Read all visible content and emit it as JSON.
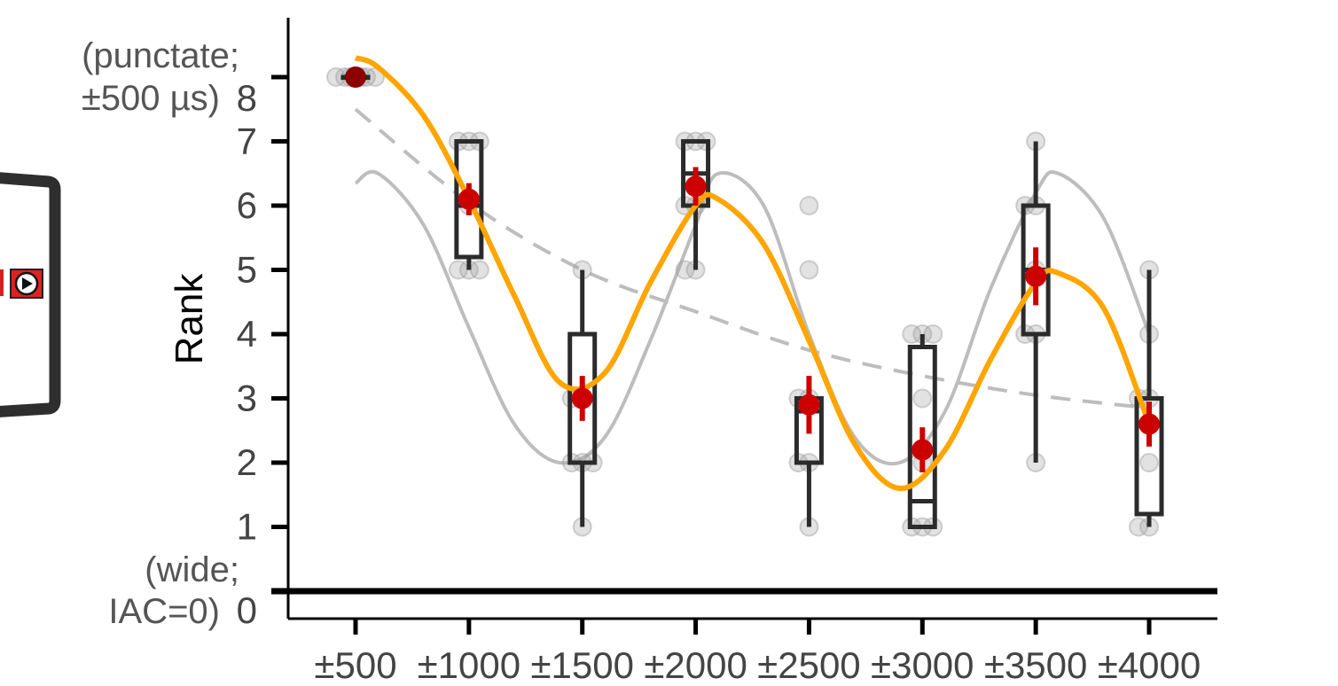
{
  "chart_data": {
    "type": "box",
    "ylabel": "Rank",
    "ylim": [
      0,
      8
    ],
    "y_ticks": [
      "1",
      "2",
      "3",
      "4",
      "5",
      "6",
      "7",
      "8",
      "0"
    ],
    "y_annotations": {
      "top": [
        "(punctate;",
        "±500 µs)"
      ],
      "bottom": [
        "(wide;",
        "IAC=0)"
      ]
    },
    "categories": [
      "±500",
      "±1000",
      "±1500",
      "±2000",
      "±2500",
      "±3000",
      "±3500",
      "±4000"
    ],
    "x_values": [
      500,
      1000,
      1500,
      2000,
      2500,
      3000,
      3500,
      4000
    ],
    "boxes": [
      {
        "min": 8,
        "q1": 8,
        "median": 8,
        "q3": 8,
        "max": 8
      },
      {
        "min": 5,
        "q1": 5.2,
        "median": 6,
        "q3": 7,
        "max": 7
      },
      {
        "min": 1,
        "q1": 2,
        "median": 3,
        "q3": 4,
        "max": 5
      },
      {
        "min": 5,
        "q1": 6,
        "median": 6.5,
        "q3": 7,
        "max": 7
      },
      {
        "min": 1,
        "q1": 2,
        "median": 2.8,
        "q3": 3,
        "max": 3
      },
      {
        "min": 1,
        "q1": 1,
        "median": 1.4,
        "q3": 3.8,
        "max": 4
      },
      {
        "min": 2,
        "q1": 4,
        "median": 5,
        "q3": 6,
        "max": 7
      },
      {
        "min": 1,
        "q1": 1.2,
        "median": 3,
        "q3": 3,
        "max": 5
      }
    ],
    "means": [
      8.0,
      6.1,
      3.0,
      6.3,
      2.9,
      2.2,
      4.9,
      2.6
    ],
    "mean_errors": [
      0.05,
      0.25,
      0.35,
      0.3,
      0.45,
      0.35,
      0.45,
      0.35
    ],
    "raw_points": [
      [
        8,
        8,
        8,
        8,
        8,
        8,
        8
      ],
      [
        7,
        7,
        7,
        6,
        5,
        5,
        5
      ],
      [
        5,
        3,
        3,
        2,
        2,
        2,
        1
      ],
      [
        7,
        7,
        7,
        6,
        6,
        5,
        5
      ],
      [
        6,
        5,
        3,
        3,
        2,
        2,
        1
      ],
      [
        4,
        4,
        4,
        3,
        2,
        1,
        1,
        1
      ],
      [
        7,
        6,
        6,
        5,
        4,
        4,
        2
      ],
      [
        5,
        4,
        3,
        3,
        2,
        1,
        1
      ]
    ],
    "orange_fit_points": [
      [
        500,
        8.3
      ],
      [
        600,
        8.15
      ],
      [
        800,
        7.4
      ],
      [
        1000,
        6.1
      ],
      [
        1200,
        4.6
      ],
      [
        1400,
        3.25
      ],
      [
        1600,
        3.4
      ],
      [
        1800,
        4.8
      ],
      [
        2000,
        6.0
      ],
      [
        2100,
        6.1
      ],
      [
        2300,
        5.4
      ],
      [
        2500,
        3.9
      ],
      [
        2700,
        2.3
      ],
      [
        2900,
        1.6
      ],
      [
        3100,
        2.2
      ],
      [
        3300,
        3.6
      ],
      [
        3500,
        4.8
      ],
      [
        3600,
        4.95
      ],
      [
        3800,
        4.4
      ],
      [
        4000,
        2.6
      ]
    ],
    "gray_fit_points": [
      [
        500,
        6.35
      ],
      [
        600,
        6.5
      ],
      [
        800,
        5.7
      ],
      [
        1000,
        4.1
      ],
      [
        1200,
        2.6
      ],
      [
        1400,
        2.0
      ],
      [
        1600,
        2.4
      ],
      [
        1800,
        3.9
      ],
      [
        2000,
        5.7
      ],
      [
        2100,
        6.5
      ],
      [
        2300,
        6.0
      ],
      [
        2500,
        4.0
      ],
      [
        2700,
        2.4
      ],
      [
        2900,
        2.0
      ],
      [
        3100,
        2.8
      ],
      [
        3300,
        4.7
      ],
      [
        3500,
        6.2
      ],
      [
        3600,
        6.5
      ],
      [
        3800,
        5.8
      ],
      [
        4000,
        4.0
      ]
    ],
    "dashed_fit_points": [
      [
        500,
        7.5
      ],
      [
        1000,
        6.05
      ],
      [
        1500,
        5.0
      ],
      [
        2000,
        4.35
      ],
      [
        2500,
        3.75
      ],
      [
        3000,
        3.35
      ],
      [
        3500,
        3.05
      ],
      [
        4000,
        2.85
      ]
    ],
    "colors": {
      "box": "#2b2b2b",
      "mean": "#cc0000",
      "orange_fit": "#ffa500",
      "gray_fit": "#bdbdbd",
      "raw_point": "#9e9e9e"
    },
    "grid": false
  }
}
